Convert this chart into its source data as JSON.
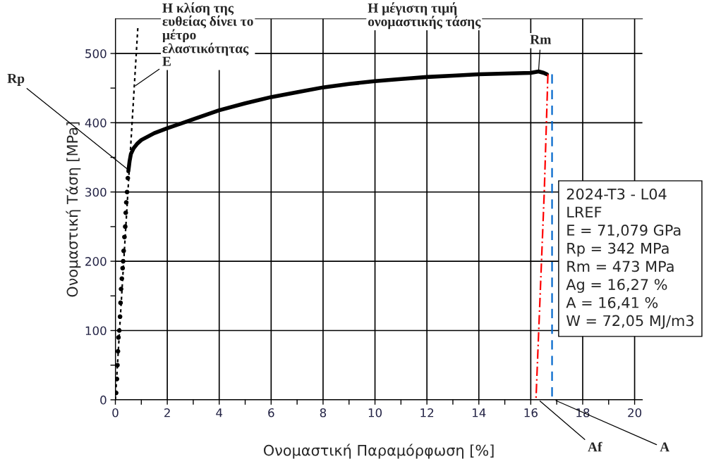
{
  "chart_data": {
    "type": "line",
    "xlabel": "Ονομαστική Παραμόρφωση [%]",
    "ylabel": "Ονομαστική Τάση [MPa]",
    "xlim": [
      0,
      20.3
    ],
    "ylim": [
      0,
      550
    ],
    "xticks": [
      0,
      {
        "value": 1,
        "label": null
      },
      2,
      {
        "value": 3,
        "label": null
      },
      4,
      {
        "value": 5,
        "label": null
      },
      6,
      {
        "value": 7,
        "label": null
      },
      8,
      {
        "value": 9,
        "label": null
      },
      10,
      {
        "value": 11,
        "label": null
      },
      12,
      {
        "value": 13,
        "label": null
      },
      14,
      {
        "value": 15,
        "label": null
      },
      16,
      {
        "value": 17,
        "label": null
      },
      18,
      {
        "value": 19,
        "label": null
      },
      20
    ],
    "yticks": [
      0,
      {
        "value": 50,
        "label": null
      },
      100,
      {
        "value": 150,
        "label": null
      },
      200,
      {
        "value": 250,
        "label": null
      },
      300,
      {
        "value": 350,
        "label": null
      },
      400,
      {
        "value": 450,
        "label": null
      },
      500
    ],
    "grid": true,
    "legend": false,
    "series": [
      {
        "type": "scatter",
        "marker": "circle",
        "color": "#000000",
        "x": [
          0.03,
          0.06,
          0.08,
          0.1,
          0.12,
          0.15,
          0.18,
          0.2,
          0.22,
          0.25,
          0.28,
          0.3,
          0.32,
          0.35,
          0.38,
          0.4,
          0.42,
          0.45,
          0.48
        ],
        "values": [
          10,
          30,
          50,
          70,
          90,
          100,
          120,
          140,
          160,
          175,
          190,
          200,
          215,
          235,
          250,
          270,
          285,
          300,
          320
        ]
      },
      {
        "marker": "none",
        "line_style": "solid",
        "color": "#000000",
        "x": [
          0.5,
          0.55,
          0.6,
          0.7,
          0.85,
          1.0,
          1.5,
          2,
          3,
          4,
          5,
          6,
          7,
          8,
          9,
          10,
          11,
          12,
          13,
          14,
          15,
          16,
          16.3,
          16.5,
          16.62
        ],
        "values": [
          330,
          345,
          355,
          363,
          370,
          375,
          385,
          392,
          405,
          418,
          428,
          437,
          444,
          451,
          456,
          460,
          463,
          466,
          468,
          470,
          471,
          472,
          474,
          472,
          470
        ]
      },
      {
        "marker": "none",
        "line_style": "dotted",
        "color": "#000000",
        "x": [
          0.0,
          0.87
        ],
        "values": [
          0,
          540
        ]
      },
      {
        "marker": "none",
        "line_style": "dashdot",
        "color": "#ff0000",
        "x": [
          16.66,
          16.52,
          16.2
        ],
        "values": [
          470,
          300,
          0
        ]
      },
      {
        "marker": "none",
        "line_style": "dashed",
        "color": "#0066cc",
        "x": [
          16.82,
          16.82
        ],
        "values": [
          470,
          0
        ]
      }
    ],
    "annotations": [
      {
        "text": "Rp",
        "x": 0.5,
        "y": 332
      },
      {
        "text": "Η κλίση της\nευθείας δίνει το\nμέτρο\nελαστικότητας\nE",
        "x": 0.72,
        "y": 452
      },
      {
        "text": "Η μέγιστη τιμή\nονομαστικής τάσης"
      },
      {
        "text": "Rm",
        "x": 16.3,
        "y": 474
      },
      {
        "text": "Af",
        "x": 16.3,
        "y": 0
      },
      {
        "text": "A",
        "x": 16.9,
        "y": 0
      },
      "2024-T3 - L04\nLREF\nE = 71,079 GPa\nRp = 342 MPa\nRm = 473 MPa\nAg = 16,27 %\nA = 16,41 %\nW = 72,05 MJ/m3"
    ]
  }
}
